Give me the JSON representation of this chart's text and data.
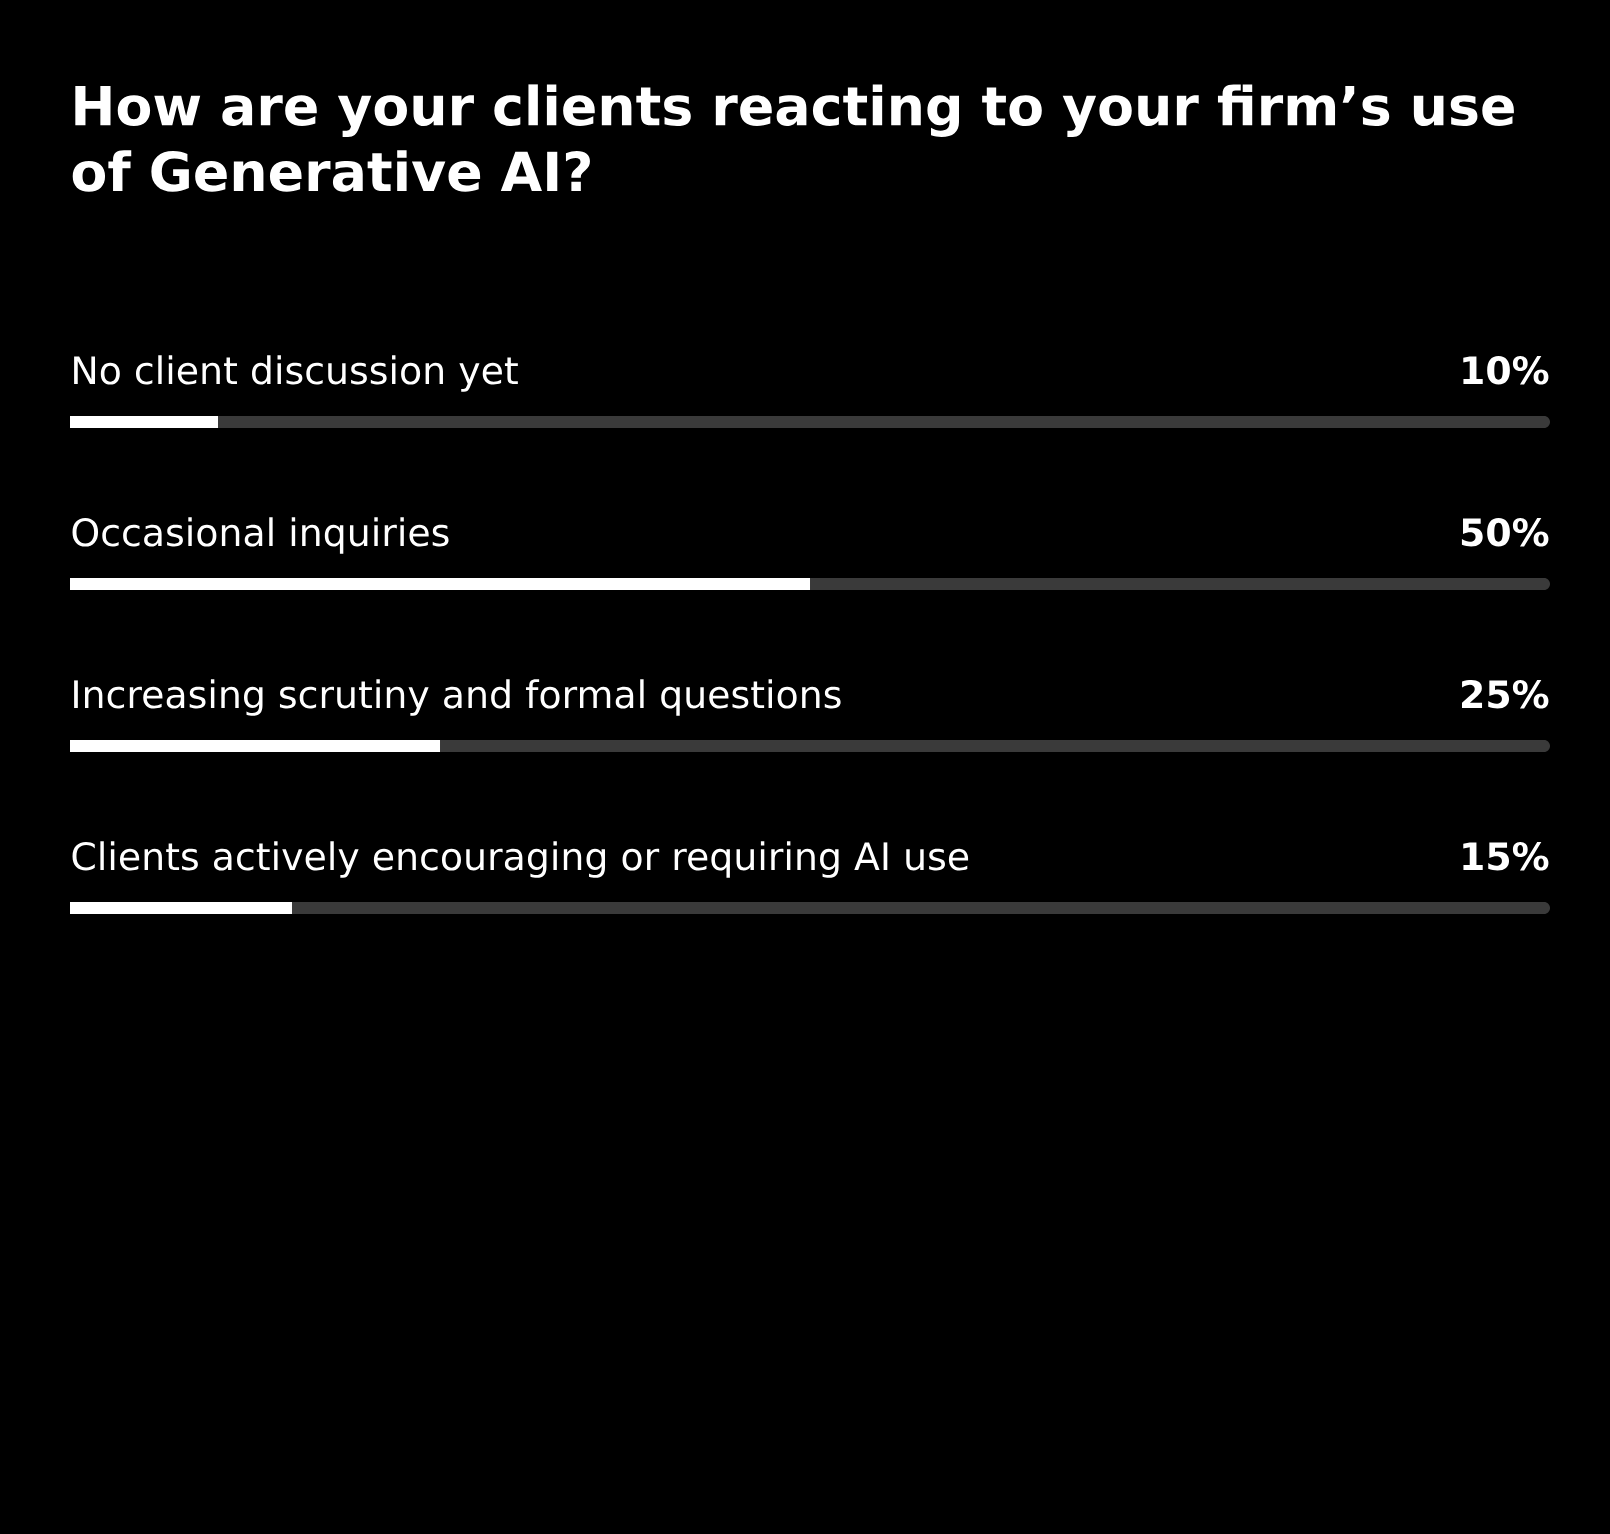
{
  "chart_data": {
    "type": "bar",
    "orientation": "horizontal",
    "title": "How are your clients reacting to your firm’s use of Generative AI?",
    "categories": [
      "No client discussion yet",
      "Occasional inquiries",
      "Increasing scrutiny and formal questions",
      "Clients actively encouraging or requiring AI use"
    ],
    "values": [
      10,
      50,
      25,
      15
    ],
    "value_labels": [
      "10%",
      "50%",
      "25%",
      "15%"
    ],
    "color": "#ffffff",
    "xlim": [
      0,
      100
    ]
  }
}
